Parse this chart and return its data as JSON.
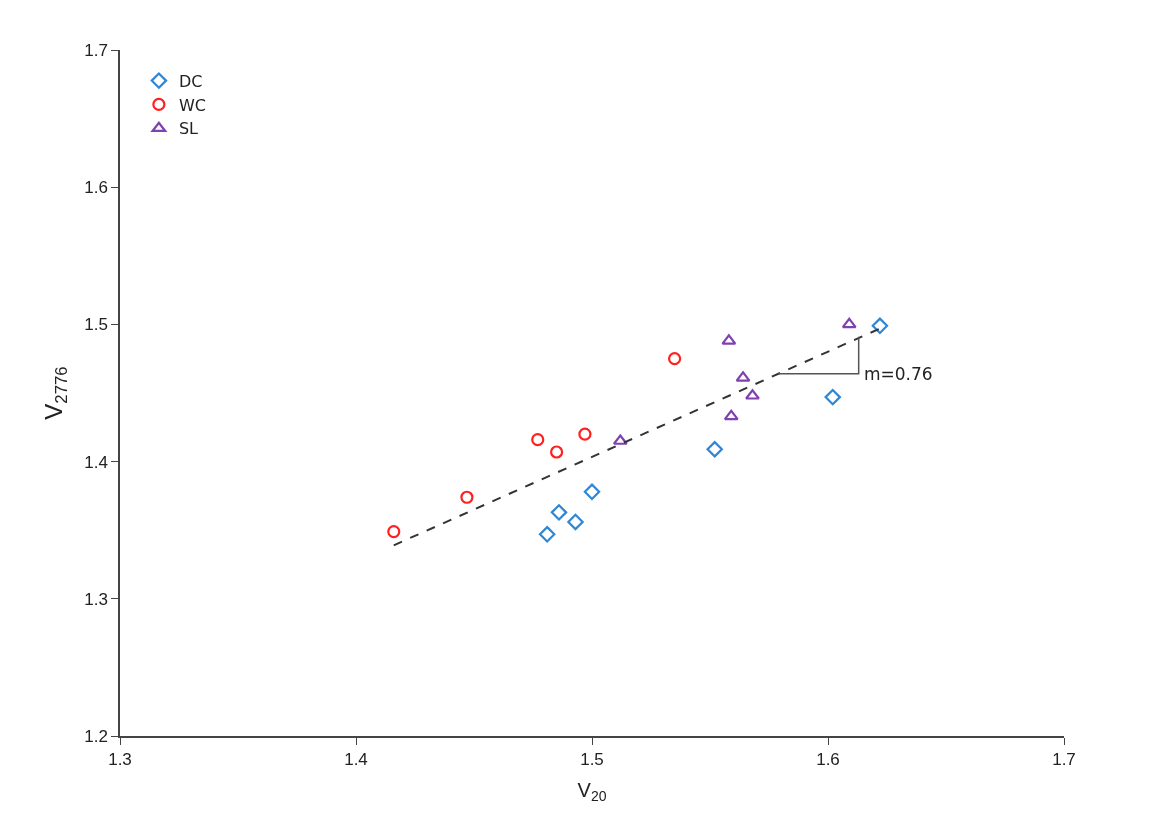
{
  "chart_data": {
    "type": "scatter",
    "xlabel": "V$_{20}$",
    "ylabel": "V$_{2776}$",
    "xlim": [
      1.3,
      1.7
    ],
    "xticks": [
      1.3,
      1.4,
      1.5,
      1.6,
      1.7
    ],
    "ylim": [
      1.2,
      1.7
    ],
    "yticks": [
      1.2,
      1.3,
      1.4,
      1.5,
      1.6,
      1.7
    ],
    "legend": "top left",
    "series": [
      {
        "name": "DC",
        "color": "#2e86d6",
        "marker": "diamond",
        "x": [
          1.481,
          1.486,
          1.493,
          1.5,
          1.552,
          1.602,
          1.622
        ],
        "values": [
          1.347,
          1.363,
          1.356,
          1.378,
          1.409,
          1.447,
          1.499
        ]
      },
      {
        "name": "WC",
        "color": "#ff2020",
        "marker": "circle",
        "x": [
          1.416,
          1.447,
          1.477,
          1.485,
          1.497,
          1.535
        ],
        "values": [
          1.349,
          1.374,
          1.416,
          1.407,
          1.42,
          1.475
        ]
      },
      {
        "name": "SL",
        "color": "#8040b0",
        "marker": "triangle",
        "x": [
          1.512,
          1.558,
          1.559,
          1.564,
          1.568,
          1.609
        ],
        "values": [
          1.415,
          1.488,
          1.433,
          1.461,
          1.448,
          1.5
        ]
      },
      {
        "type": "line",
        "color": "#333333",
        "line_style": "dashed",
        "marker": "none",
        "x": [
          1.416,
          1.622
        ],
        "values": [
          1.339,
          1.497
        ]
      },
      {
        "type": "line",
        "color": "#555555",
        "line_style": "solid",
        "marker": "none",
        "x": [
          1.579,
          1.613,
          1.613
        ],
        "values": [
          1.464,
          1.464,
          1.491
        ]
      }
    ],
    "annotations": [
      "m=0.76"
    ]
  }
}
